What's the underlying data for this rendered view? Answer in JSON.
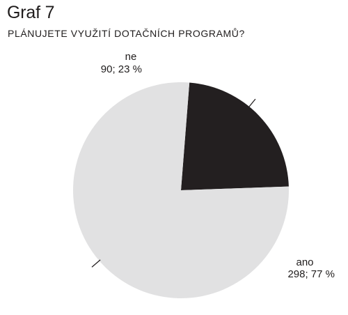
{
  "figure_label": "Graf 7",
  "chart_data": {
    "type": "pie",
    "title": "PLÁNUJETE VYUŽITÍ DOTAČNÍCH PROGRAMŮ?",
    "slices": [
      {
        "label": "ne",
        "value": 90,
        "percent": 23,
        "value_text": "90; 23 %",
        "color": "#231f20"
      },
      {
        "label": "ano",
        "value": 298,
        "percent": 77,
        "value_text": "298; 77 %",
        "color": "#e1e1e2"
      }
    ]
  }
}
